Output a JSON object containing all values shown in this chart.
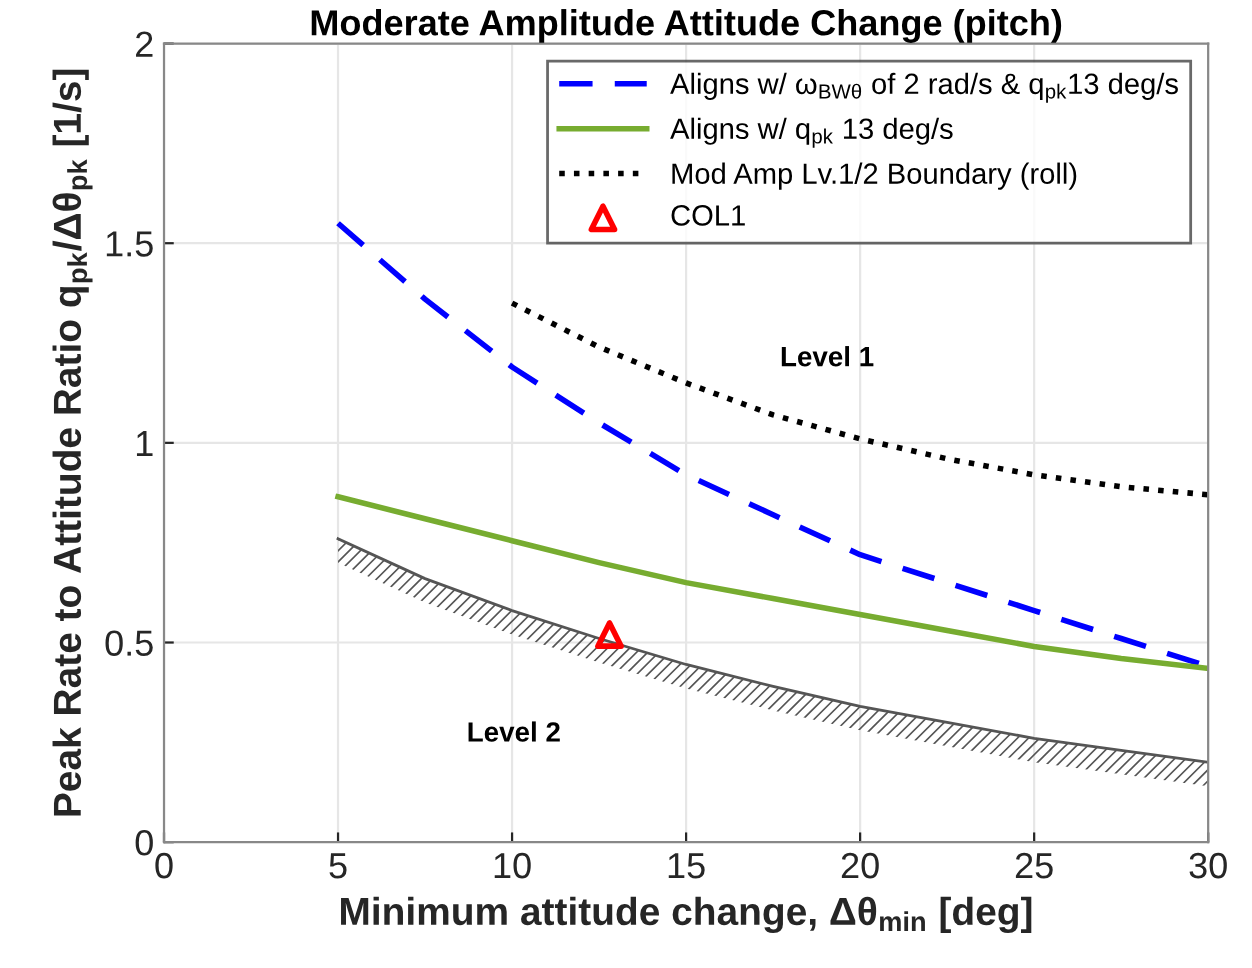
{
  "chart_data": {
    "type": "line",
    "title": "Moderate Amplitude Attitude Change (pitch)",
    "xlabel": "Minimum attitude change, Δθ$_{min}$ [deg]",
    "ylabel": "Peak Rate to Attitude Ratio q$_{pk}$/Δθ$_{pk}$ [1/s]",
    "xlim": [
      0,
      30
    ],
    "ylim": [
      0,
      2
    ],
    "xticks": [
      0,
      5,
      10,
      15,
      20,
      25,
      30
    ],
    "yticks": [
      0,
      0.5,
      1,
      1.5,
      2
    ],
    "grid": true,
    "legend": "top right",
    "series": [
      {
        "name": "Aligns w/ ω$_{BWθ}$ of 2 rad/s & q$_{pk}$13 deg/s",
        "color": "#0000ff",
        "line_style": "dashed",
        "x": [
          5,
          7.5,
          10,
          12.5,
          15,
          17.5,
          20,
          22.5,
          25,
          27.5,
          30
        ],
        "values": [
          1.55,
          1.36,
          1.19,
          1.05,
          0.92,
          0.82,
          0.72,
          0.65,
          0.58,
          0.51,
          0.44
        ]
      },
      {
        "name": "Aligns w/ q$_{pk}$ 13 deg/s",
        "color": "#77ac30",
        "line_style": "solid",
        "x": [
          5,
          7.5,
          10,
          12.5,
          15,
          17.5,
          20,
          22.5,
          25,
          27.5,
          30
        ],
        "values": [
          0.865,
          0.81,
          0.755,
          0.7,
          0.65,
          0.61,
          0.57,
          0.53,
          0.49,
          0.46,
          0.435
        ]
      },
      {
        "name": "Mod Amp Lv.1/2 Boundary (roll)",
        "color": "#000000",
        "line_style": "dotted",
        "x": [
          10,
          12.5,
          15,
          17.5,
          20,
          22.5,
          25,
          27.5,
          30
        ],
        "values": [
          1.35,
          1.24,
          1.15,
          1.07,
          1.01,
          0.96,
          0.92,
          0.89,
          0.87
        ]
      },
      {
        "name": "COL1",
        "type": "scatter",
        "marker": "triangle",
        "color": "#ff0000",
        "x": [
          12.8
        ],
        "values": [
          0.52
        ]
      },
      {
        "color": "#555555",
        "line_style": "solid",
        "x": [
          5,
          7.5,
          10,
          12.5,
          15,
          17.5,
          20,
          22.5,
          25,
          27.5,
          30
        ],
        "values": [
          0.76,
          0.66,
          0.58,
          0.51,
          0.445,
          0.39,
          0.34,
          0.3,
          0.26,
          0.23,
          0.2
        ]
      }
    ],
    "annotations": [
      "Level 1",
      "Level 2"
    ]
  }
}
